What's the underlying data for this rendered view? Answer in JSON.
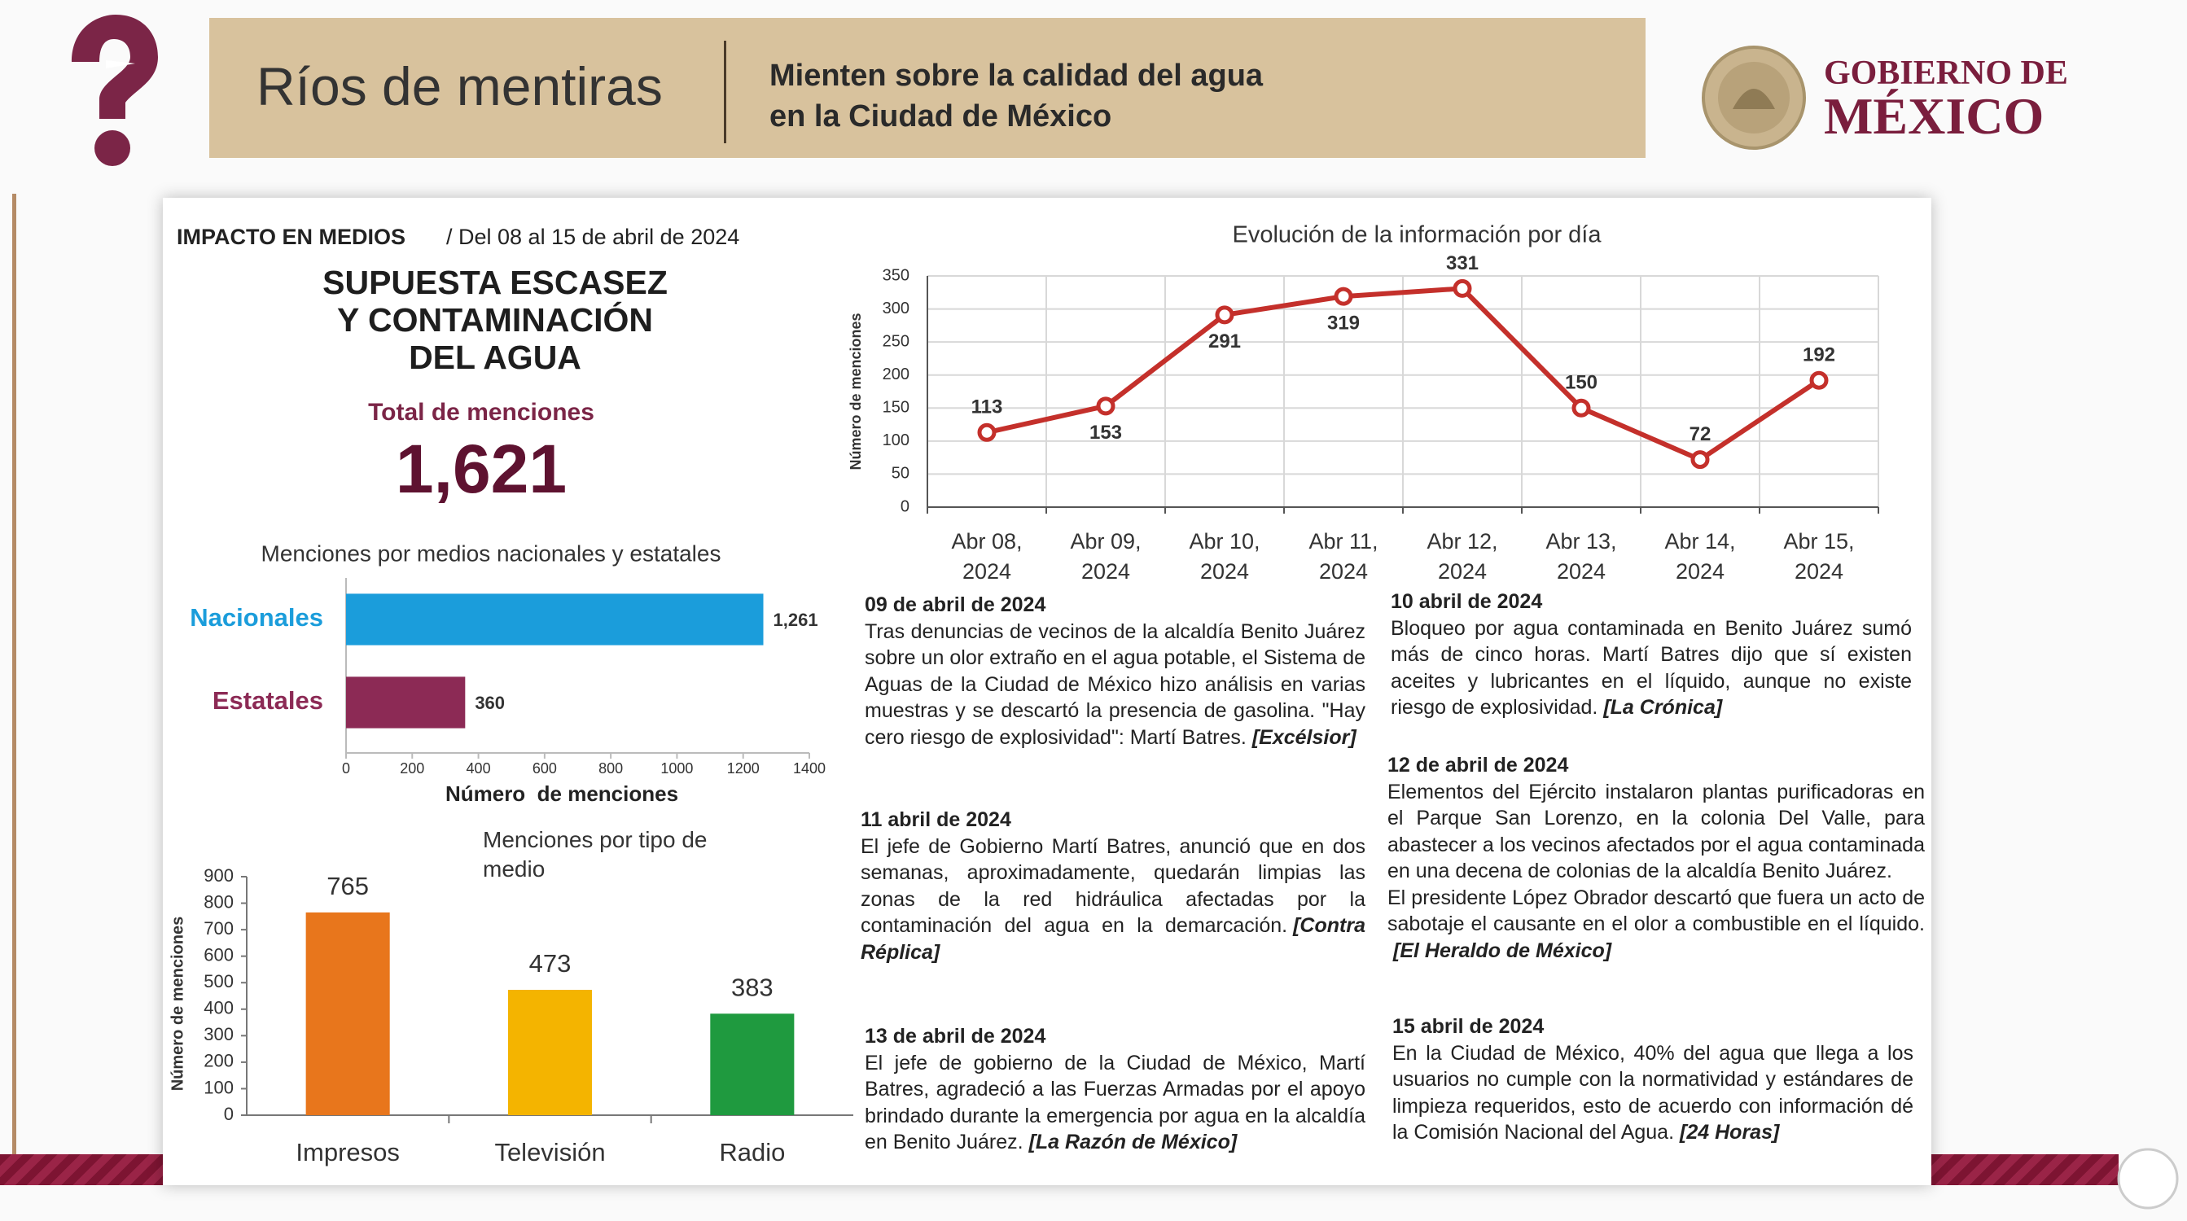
{
  "header": {
    "title": "Ríos de mentiras",
    "subtitle": [
      "Mienten sobre la calidad del agua",
      "en la Ciudad de México"
    ],
    "logo": [
      "GOBIERNO DE",
      "MÉXICO"
    ]
  },
  "panel": {
    "label": "IMPACTO EN MEDIOS",
    "date_range": "/ Del 08 al 15 de abril de 2024",
    "headline": [
      "SUPUESTA ESCASEZ",
      "Y CONTAMINACIÓN",
      "DEL AGUA"
    ],
    "total_label": "Total de menciones",
    "total": "1,621"
  },
  "chart_data": [
    {
      "type": "bar",
      "orientation": "horizontal",
      "title": "Menciones por medios nacionales y estatales",
      "categories": [
        "Nacionales",
        "Estatales"
      ],
      "values": [
        1261,
        360
      ],
      "value_labels": [
        "1,261",
        "360"
      ],
      "colors": [
        "#1b9ddb",
        "#8c2a55"
      ],
      "xlim": [
        0,
        1400
      ],
      "xticks": [
        0,
        200,
        400,
        600,
        800,
        1000,
        1200,
        1400
      ],
      "xlabel": "Número  de menciones"
    },
    {
      "type": "bar",
      "orientation": "vertical",
      "title": "Menciones por tipo de medio",
      "categories": [
        "Impresos",
        "Televisión",
        "Radio"
      ],
      "values": [
        765,
        473,
        383
      ],
      "colors": [
        "#e8761c",
        "#f4b400",
        "#1f9a3f"
      ],
      "ylim": [
        0,
        900
      ],
      "yticks": [
        0,
        100,
        200,
        300,
        400,
        500,
        600,
        700,
        800,
        900
      ],
      "ylabel": "Número de menciones"
    },
    {
      "type": "line",
      "title": "Evolución de la información por día",
      "categories": [
        "Abr 08, 2024",
        "Abr 09, 2024",
        "Abr 10, 2024",
        "Abr 11, 2024",
        "Abr 12, 2024",
        "Abr 13, 2024",
        "Abr 14, 2024",
        "Abr 15, 2024"
      ],
      "values": [
        113,
        153,
        291,
        319,
        331,
        150,
        72,
        192
      ],
      "color": "#c4302b",
      "ylim": [
        0,
        350
      ],
      "yticks": [
        0,
        50,
        100,
        150,
        200,
        250,
        300,
        350
      ],
      "ylabel": "Número de menciones",
      "grid": true
    }
  ],
  "news": [
    {
      "date": "09 de abril de 2024",
      "text": [
        "Tras denuncias de vecinos de la alcaldía Benito Juárez sobre un olor extraño en el agua potable, el Sistema de Aguas de la Ciudad de México hizo análisis en varias muestras y se descartó la presencia de gasolina. \"Hay cero riesgo de explosividad\": Martí Batres."
      ],
      "source": "[Excélsior]"
    },
    {
      "date": "11 abril de 2024",
      "text": [
        "El jefe de Gobierno Martí Batres, anunció que en dos semanas, aproximadamente, quedarán limpias las zonas de la red hidráulica afectadas por la contaminación del agua en la demarcación."
      ],
      "source": "[Contra Réplica]"
    },
    {
      "date": "13 de abril de 2024",
      "text": [
        "El jefe de gobierno de la Ciudad de México, Martí Batres, agradeció a las Fuerzas Armadas por el apoyo brindado durante la emergencia por agua en la alcaldía en Benito Juárez."
      ],
      "source": "[La Razón de México]"
    },
    {
      "date": "10 abril de 2024",
      "text": [
        "Bloqueo por agua contaminada en Benito Juárez sumó más de cinco horas. Martí Batres dijo que sí existen aceites y lubricantes en el líquido, aunque no existe riesgo de explosividad."
      ],
      "source": "[La Crónica]"
    },
    {
      "date": "12 de abril de 2024",
      "text": [
        "Elementos del Ejército instalaron plantas purificadoras en el Parque San Lorenzo, en la colonia Del Valle, para abastecer a los vecinos afectados por el agua contaminada en una decena de colonias de la alcaldía Benito Juárez.",
        "El presidente López Obrador descartó que fuera un acto de sabotaje el causante en el olor a combustible en el líquido."
      ],
      "source": "[El Heraldo de México]"
    },
    {
      "date": "15 abril de 2024",
      "text": [
        "En la Ciudad de México, 40% del agua que llega a los usuarios no cumple con la normatividad y estándares de limpieza requeridos, esto de acuerdo con información dé la Comisión Nacional del Agua."
      ],
      "source": "[24 Horas]"
    }
  ]
}
